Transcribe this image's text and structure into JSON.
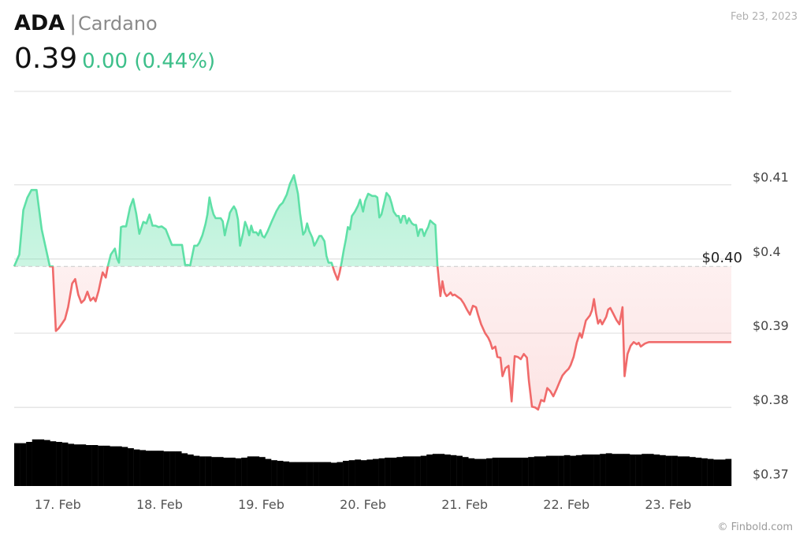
{
  "header": {
    "ticker": "ADA",
    "separator": "|",
    "name": "Cardano",
    "price": "0.39",
    "change": "0.00 (0.44%)",
    "change_color": "#3dbf8a",
    "date": "Feb 23, 2023"
  },
  "watermark": "© Finbold.com",
  "chart_data": {
    "type": "area",
    "ylim": [
      0.3694,
      0.4226
    ],
    "y_ticks": [
      {
        "value": 0.41,
        "label": "$0.41"
      },
      {
        "value": 0.4,
        "label": "$0.4"
      },
      {
        "value": 0.39,
        "label": "$0.39"
      },
      {
        "value": 0.38,
        "label": "$0.38"
      },
      {
        "value": 0.37,
        "label": "$0.37"
      }
    ],
    "x_ticks": [
      "17. Feb",
      "18. Feb",
      "19. Feb",
      "20. Feb",
      "21. Feb",
      "22. Feb",
      "23. Feb"
    ],
    "x_tick_days": [
      17,
      18,
      19,
      20,
      21,
      22,
      23
    ],
    "xlim": [
      16.61,
      23.66
    ],
    "reference": {
      "value": 0.399,
      "label": "$0.40"
    },
    "colors": {
      "up": "#5fe0a7",
      "down": "#f06a6a",
      "volume": "#000000",
      "grid": "#e3e3e3"
    },
    "grid": true,
    "price": {
      "day": [
        16.61,
        16.66,
        16.7,
        16.74,
        16.78,
        16.81,
        16.83,
        16.88,
        16.96,
        16.99,
        17.02,
        17.05,
        17.08,
        17.11,
        17.14,
        17.18,
        17.21,
        17.24,
        17.27,
        17.3,
        17.33,
        17.36,
        17.39,
        17.41,
        17.44,
        17.46,
        17.48,
        17.51,
        17.53,
        17.56,
        17.6,
        17.62,
        17.64,
        17.66,
        17.68,
        17.71,
        17.75,
        17.78,
        17.81,
        17.84,
        17.88,
        17.91,
        17.94,
        17.97,
        18.0,
        18.03,
        18.06,
        18.1,
        18.16,
        18.22,
        18.26,
        18.29,
        18.32,
        18.34,
        18.38,
        18.41,
        18.43,
        18.46,
        18.49,
        18.51,
        18.53,
        18.55,
        18.57,
        18.59,
        18.62,
        18.64,
        18.66,
        18.68,
        18.7,
        18.72,
        18.73,
        18.75,
        18.77,
        18.79,
        18.81,
        18.83,
        18.86,
        18.88,
        18.9,
        18.92,
        18.94,
        18.96,
        18.99,
        19.01,
        19.03,
        19.05,
        19.07,
        19.1,
        19.14,
        19.17,
        19.19,
        19.22,
        19.25,
        19.29,
        19.32,
        19.36,
        19.4,
        19.42,
        19.45,
        19.47,
        19.49,
        19.51,
        19.54,
        19.56,
        19.58,
        19.61,
        19.63,
        19.66,
        19.68,
        19.7,
        19.73,
        19.76,
        19.79,
        19.81,
        19.83,
        19.85,
        19.87,
        19.89,
        19.91,
        19.93,
        19.96,
        19.99,
        20.01,
        20.04,
        20.06,
        20.09,
        20.13,
        20.16,
        20.18,
        20.2,
        20.22,
        20.25,
        20.27,
        20.3,
        20.32,
        20.34,
        20.37,
        20.39,
        20.41,
        20.43,
        20.45,
        20.47,
        20.49,
        20.52,
        20.54,
        20.56,
        20.58,
        20.6,
        20.62,
        20.64,
        20.66,
        20.68,
        20.7,
        20.73,
        20.75,
        20.77,
        20.8,
        20.82,
        20.84,
        20.86,
        20.88,
        20.9,
        20.92,
        20.94,
        20.97,
        21.0,
        21.03,
        21.06,
        21.09,
        21.12,
        21.15,
        21.17,
        21.2,
        21.24,
        21.27,
        21.29,
        21.31,
        21.34,
        21.36,
        21.39,
        21.41,
        21.44,
        21.47,
        21.5,
        21.53,
        21.56,
        21.59,
        21.62,
        21.65,
        21.67,
        21.7,
        21.73,
        21.76,
        21.79,
        21.82,
        21.85,
        21.88,
        21.91,
        21.94,
        21.97,
        22.0,
        22.03,
        22.06,
        22.08,
        22.11,
        22.14,
        22.17,
        22.19,
        22.23,
        22.27,
        22.29,
        22.31,
        22.33,
        22.35,
        22.37,
        22.39,
        22.41,
        22.43,
        22.45,
        22.47,
        22.5,
        22.53,
        22.56,
        22.59,
        22.61,
        22.64,
        22.67,
        22.7,
        22.73,
        22.75,
        22.77,
        22.79,
        22.81,
        22.83,
        22.85,
        22.87,
        22.89,
        22.91,
        22.93,
        22.95,
        22.97,
        23.0,
        23.03,
        23.06,
        23.08,
        23.11,
        23.14,
        23.17,
        23.2,
        23.23,
        23.26,
        23.28,
        23.3,
        23.31,
        23.33,
        23.35,
        23.37,
        23.4,
        23.43,
        23.45,
        23.47,
        23.49,
        23.51,
        23.53,
        23.55,
        23.57,
        23.6,
        23.63,
        23.66
      ],
      "value": [
        0.399,
        0.4006,
        0.4066,
        0.4083,
        0.4093,
        0.4093,
        0.4093,
        0.404,
        0.399,
        0.399,
        0.3903,
        0.3907,
        0.3913,
        0.3919,
        0.3935,
        0.3967,
        0.3973,
        0.3952,
        0.3941,
        0.3945,
        0.3956,
        0.3944,
        0.3948,
        0.3943,
        0.3957,
        0.397,
        0.3982,
        0.3975,
        0.399,
        0.4006,
        0.4014,
        0.4001,
        0.3995,
        0.4043,
        0.4044,
        0.4044,
        0.407,
        0.4081,
        0.4061,
        0.4034,
        0.405,
        0.4048,
        0.406,
        0.4045,
        0.4045,
        0.4043,
        0.4044,
        0.404,
        0.4019,
        0.4019,
        0.4019,
        0.3992,
        0.3992,
        0.3991,
        0.4018,
        0.4018,
        0.4022,
        0.4032,
        0.4047,
        0.406,
        0.4083,
        0.407,
        0.406,
        0.4055,
        0.4055,
        0.4055,
        0.4051,
        0.4032,
        0.4045,
        0.4055,
        0.4062,
        0.4067,
        0.4071,
        0.4066,
        0.4053,
        0.4018,
        0.4035,
        0.405,
        0.4043,
        0.4032,
        0.4045,
        0.4036,
        0.4036,
        0.4032,
        0.4039,
        0.4031,
        0.4029,
        0.4037,
        0.405,
        0.4059,
        0.4065,
        0.4072,
        0.4076,
        0.4087,
        0.4101,
        0.4113,
        0.4088,
        0.4062,
        0.4033,
        0.4037,
        0.4048,
        0.4038,
        0.4029,
        0.4018,
        0.4023,
        0.4031,
        0.4031,
        0.4024,
        0.4004,
        0.3995,
        0.3995,
        0.3982,
        0.3972,
        0.3982,
        0.3996,
        0.4012,
        0.4026,
        0.4043,
        0.404,
        0.4058,
        0.4064,
        0.4072,
        0.408,
        0.4064,
        0.4078,
        0.4088,
        0.4085,
        0.4085,
        0.4083,
        0.4056,
        0.406,
        0.4077,
        0.4089,
        0.4084,
        0.4075,
        0.4064,
        0.4058,
        0.4058,
        0.4049,
        0.4058,
        0.4058,
        0.4048,
        0.4055,
        0.4048,
        0.4046,
        0.4046,
        0.4031,
        0.404,
        0.404,
        0.4031,
        0.4038,
        0.4043,
        0.4052,
        0.4048,
        0.4046,
        0.3992,
        0.395,
        0.397,
        0.3955,
        0.395,
        0.3952,
        0.3955,
        0.3951,
        0.3952,
        0.3949,
        0.3946,
        0.394,
        0.3932,
        0.3925,
        0.3937,
        0.3935,
        0.3925,
        0.3912,
        0.39,
        0.3894,
        0.3888,
        0.3879,
        0.3882,
        0.3868,
        0.3867,
        0.3842,
        0.3853,
        0.3856,
        0.3808,
        0.3869,
        0.3868,
        0.3865,
        0.3872,
        0.3867,
        0.3836,
        0.3801,
        0.38,
        0.3797,
        0.381,
        0.3808,
        0.3826,
        0.3822,
        0.3815,
        0.3824,
        0.3834,
        0.3843,
        0.3848,
        0.3852,
        0.3857,
        0.3868,
        0.3887,
        0.39,
        0.3894,
        0.3917,
        0.3924,
        0.3931,
        0.3946,
        0.3927,
        0.3913,
        0.3918,
        0.3912,
        0.3917,
        0.3922,
        0.3932,
        0.3934,
        0.3926,
        0.3918,
        0.3912,
        0.3935,
        0.3842,
        0.3872,
        0.3883,
        0.3888,
        0.3885,
        0.3887,
        0.3882,
        0.3884,
        0.3886,
        0.3887,
        0.3888,
        0.3888,
        0.3888,
        0.3888,
        0.3888,
        0.3888,
        0.3888,
        0.3888,
        0.3888,
        0.3888,
        0.3888,
        0.3888,
        0.3888,
        0.3888,
        0.3888,
        0.3888,
        0.3888,
        0.3888,
        0.3888,
        0.3888,
        0.3888,
        0.3888,
        0.3888,
        0.3888,
        0.3888,
        0.3888,
        0.3888,
        0.3888,
        0.3888,
        0.3888,
        0.3888,
        0.3888,
        0.3888,
        0.3888,
        0.3888,
        0.3888,
        0.3888,
        0.3888,
        0.3888,
        0.3888
      ]
    },
    "volume_relative": [
      0.68,
      0.68,
      0.7,
      0.74,
      0.74,
      0.73,
      0.71,
      0.7,
      0.69,
      0.67,
      0.66,
      0.66,
      0.65,
      0.65,
      0.64,
      0.64,
      0.63,
      0.63,
      0.62,
      0.6,
      0.58,
      0.57,
      0.56,
      0.56,
      0.56,
      0.55,
      0.55,
      0.55,
      0.52,
      0.5,
      0.48,
      0.47,
      0.47,
      0.46,
      0.46,
      0.45,
      0.45,
      0.44,
      0.45,
      0.47,
      0.47,
      0.46,
      0.43,
      0.41,
      0.4,
      0.39,
      0.38,
      0.38,
      0.38,
      0.38,
      0.38,
      0.38,
      0.38,
      0.37,
      0.38,
      0.4,
      0.41,
      0.42,
      0.41,
      0.42,
      0.43,
      0.44,
      0.45,
      0.45,
      0.46,
      0.47,
      0.47,
      0.47,
      0.48,
      0.5,
      0.51,
      0.51,
      0.5,
      0.49,
      0.48,
      0.46,
      0.44,
      0.43,
      0.43,
      0.44,
      0.45,
      0.45,
      0.45,
      0.45,
      0.45,
      0.45,
      0.46,
      0.47,
      0.47,
      0.48,
      0.48,
      0.48,
      0.49,
      0.48,
      0.49,
      0.5,
      0.5,
      0.5,
      0.51,
      0.52,
      0.51,
      0.51,
      0.51,
      0.5,
      0.5,
      0.51,
      0.51,
      0.5,
      0.49,
      0.48,
      0.48,
      0.47,
      0.47,
      0.46,
      0.45,
      0.44,
      0.43,
      0.42,
      0.42,
      0.43
    ]
  }
}
